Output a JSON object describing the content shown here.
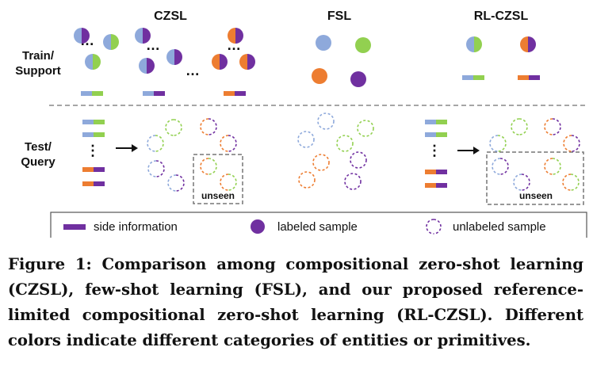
{
  "colors": {
    "blue": "#8ea9db",
    "green": "#92d050",
    "orange": "#ed7d31",
    "purple": "#7030a0",
    "divider": "#888888"
  },
  "headers": {
    "czsl": "CZSL",
    "fsl": "FSL",
    "rlczsl": "RL-CZSL"
  },
  "rows": {
    "train_line1": "Train/",
    "train_line2": "Support",
    "test_line1": "Test/",
    "test_line2": "Query"
  },
  "unseen_label": "unseen",
  "ellipsis": "…",
  "vdots": "⋮",
  "legend": {
    "side_info": "side information",
    "labeled": "labeled sample",
    "unlabeled": "unlabeled sample"
  },
  "caption": "Figure 1: Comparison among compositional zero-shot learning (CZSL), few-shot learning (FSL), and our proposed reference-limited compositional zero-shot learning (RL-CZSL). Different colors indicate different categories of entities or primitives."
}
